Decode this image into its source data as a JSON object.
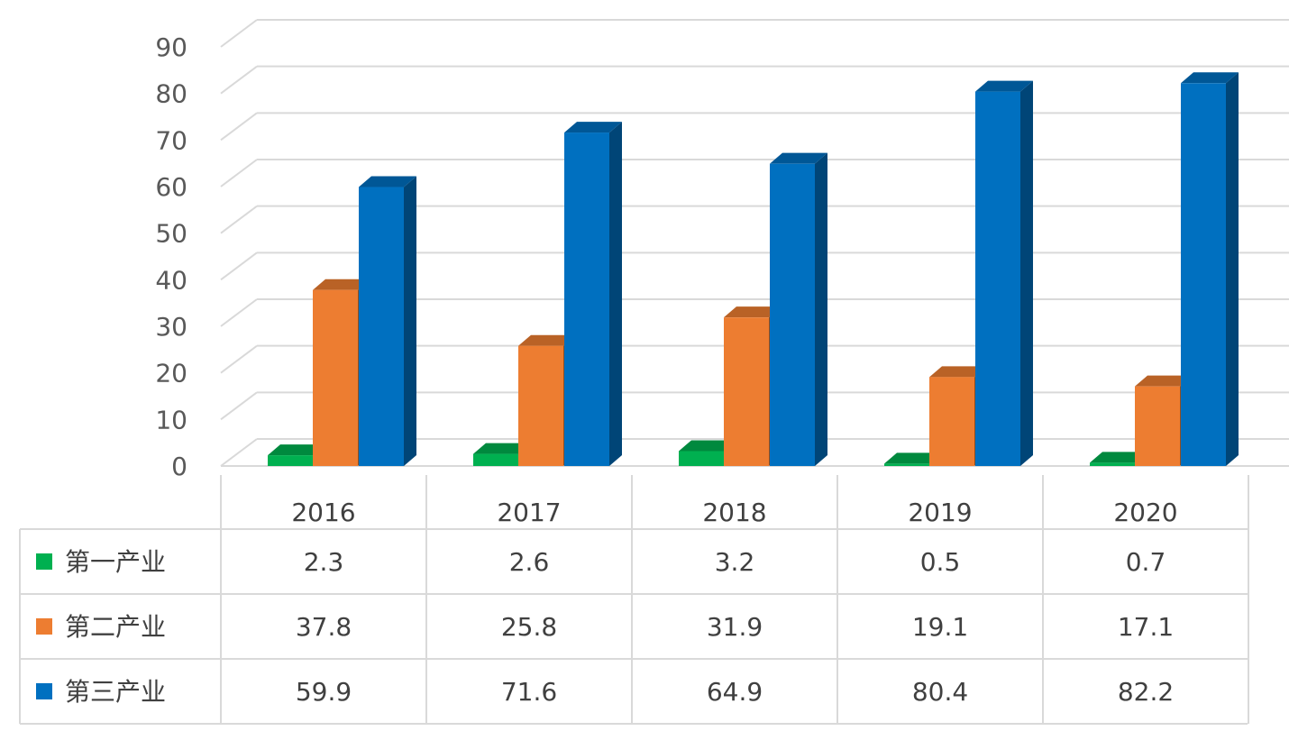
{
  "chart_data": {
    "type": "bar",
    "style": "3d-clustered-column-with-data-table",
    "title": "",
    "xlabel": "",
    "ylabel": "",
    "ylim": [
      0,
      90
    ],
    "y_ticks": [
      "0",
      "10",
      "20",
      "30",
      "40",
      "50",
      "60",
      "70",
      "80",
      "90"
    ],
    "grid": true,
    "legend": "data-table-left",
    "categories": [
      "2016",
      "2017",
      "2018",
      "2019",
      "2020"
    ],
    "series": [
      {
        "name": "第一产业",
        "color": "#00b050",
        "values": [
          2.3,
          2.6,
          3.2,
          0.5,
          0.7
        ],
        "labels": [
          "2.3",
          "2.6",
          "3.2",
          "0.5",
          "0.7"
        ]
      },
      {
        "name": "第二产业",
        "color": "#ed7d31",
        "values": [
          37.8,
          25.8,
          31.9,
          19.1,
          17.1
        ],
        "labels": [
          "37.8",
          "25.8",
          "31.9",
          "19.1",
          "17.1"
        ]
      },
      {
        "name": "第三产业",
        "color": "#0070c0",
        "values": [
          59.9,
          71.6,
          64.9,
          80.4,
          82.2
        ],
        "labels": [
          "59.9",
          "71.6",
          "64.9",
          "80.4",
          "82.2"
        ]
      }
    ]
  }
}
